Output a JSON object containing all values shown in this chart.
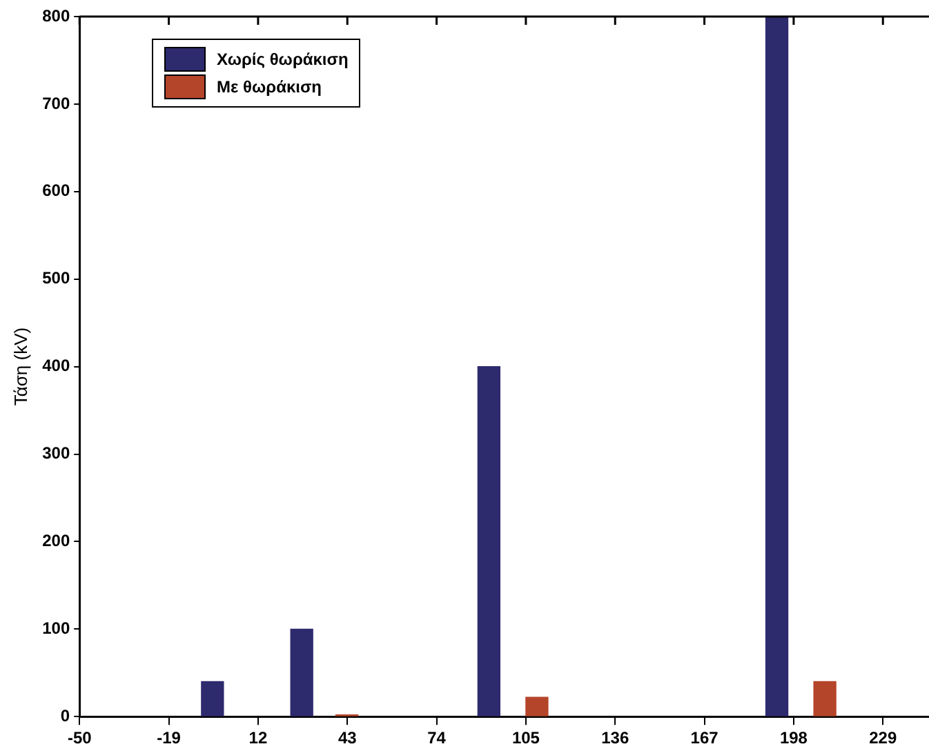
{
  "chart_data": {
    "type": "bar",
    "ylabel": "Τάση (kV)",
    "xlim": [
      -50,
      245
    ],
    "xticks": [
      -50,
      -19,
      12,
      43,
      74,
      105,
      136,
      167,
      198,
      229
    ],
    "ylim": [
      0,
      800
    ],
    "yticks": [
      0,
      100,
      200,
      300,
      400,
      500,
      600,
      700,
      800
    ],
    "grid": false,
    "legend": "top left",
    "series": [
      {
        "name": "Χωρίς θωράκιση",
        "color": "#2e2a6e",
        "x": [
          0,
          31,
          96,
          196
        ],
        "values": [
          40,
          100,
          400,
          800
        ]
      },
      {
        "name": "Με θωράκιση",
        "color": "#b5452a",
        "x": [
          39,
          105,
          205
        ],
        "values": [
          2,
          22,
          40
        ]
      }
    ]
  }
}
